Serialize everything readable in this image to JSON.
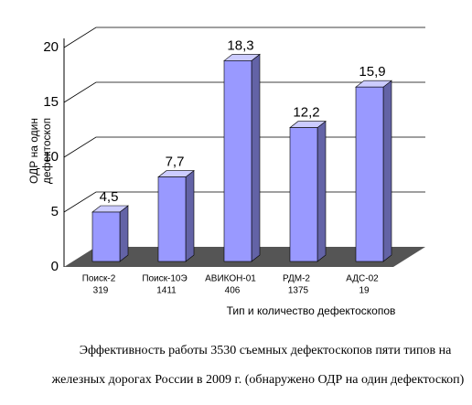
{
  "chart_data": {
    "type": "bar3d",
    "categories": [
      "Поиск-2",
      "Поиск-10Э",
      "АВИКОН-01",
      "РДМ-2",
      "АДС-02"
    ],
    "category_counts": [
      319,
      1411,
      406,
      1375,
      19
    ],
    "values": [
      4.5,
      7.7,
      18.3,
      12.2,
      15.9
    ],
    "value_labels": [
      "4,5",
      "7,7",
      "18,3",
      "12,2",
      "15,9"
    ],
    "color": "#9999ff",
    "ylim": [
      0,
      20
    ],
    "yticks": [
      0,
      5,
      10,
      15,
      20
    ],
    "grid": true,
    "y_label": [
      "ОДР на один",
      "дефектоскоп"
    ],
    "x_label": "Тип и количество дефектоскопов",
    "caption": [
      "Эффективность работы 3530 съемных дефектоскопов пяти типов на",
      "железных дорогах России в 2009 г. (обнаружено ОДР на один дефектоскоп)"
    ]
  }
}
